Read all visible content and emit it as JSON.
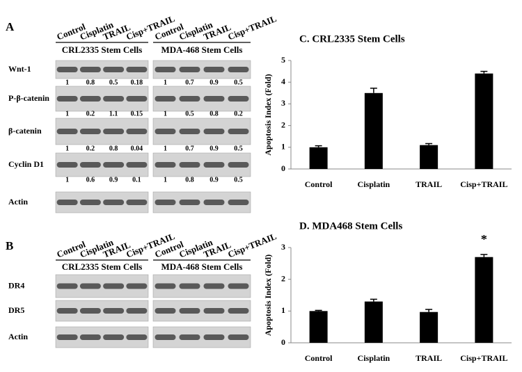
{
  "panel_a": {
    "label": "A",
    "lanes": [
      "Control",
      "Cisplatin",
      "TRAIL",
      "Cisp+TRAIL"
    ],
    "rows": [
      "Wnt-1",
      "P-β-catenin",
      "β-catenin",
      "Cyclin D1"
    ],
    "loading_control": "Actin",
    "groups": [
      {
        "name": "CRL2335 Stem Cells",
        "quant": [
          [
            1,
            0.8,
            0.5,
            0.18
          ],
          [
            1,
            0.2,
            1.1,
            0.15
          ],
          [
            1,
            0.2,
            0.8,
            0.04
          ],
          [
            1,
            0.6,
            0.9,
            0.1
          ]
        ]
      },
      {
        "name": "MDA-468 Stem Cells",
        "quant": [
          [
            1,
            0.7,
            0.9,
            0.5
          ],
          [
            1,
            0.5,
            0.8,
            0.2
          ],
          [
            1,
            0.7,
            0.9,
            0.5
          ],
          [
            1,
            0.8,
            0.9,
            0.5
          ]
        ]
      }
    ]
  },
  "panel_b": {
    "label": "B",
    "lanes": [
      "Control",
      "Cisplatin",
      "TRAIL",
      "Cisp+TRAIL"
    ],
    "groups": [
      "CRL2335 Stem Cells",
      "MDA-468 Stem Cells"
    ],
    "rows": [
      "DR4",
      "DR5",
      "Actin"
    ]
  },
  "chart_data": [
    {
      "type": "bar",
      "title": "C. CRL2335 Stem Cells",
      "y_label": "Apoptosis Index (Fold)",
      "categories": [
        "Control",
        "Cisplatin",
        "TRAIL",
        "Cisp+TRAIL"
      ],
      "values": [
        1.0,
        3.5,
        1.1,
        4.4
      ],
      "errors": [
        0.07,
        0.22,
        0.07,
        0.1
      ],
      "color": "#000000",
      "ylim": [
        0,
        5
      ],
      "yticks": [
        0,
        1,
        2,
        3,
        4,
        5
      ]
    },
    {
      "type": "bar",
      "title": "D. MDA468 Stem Cells",
      "y_label": "Apoptosis Index (Fold)",
      "categories": [
        "Control",
        "Cisplatin",
        "TRAIL",
        "Cisp+TRAIL"
      ],
      "values": [
        1.0,
        1.3,
        0.97,
        2.7
      ],
      "errors": [
        0.02,
        0.07,
        0.08,
        0.08
      ],
      "annotation": "*",
      "color": "#000000",
      "ylim": [
        0,
        3
      ],
      "yticks": [
        0,
        1,
        2,
        3
      ]
    }
  ]
}
